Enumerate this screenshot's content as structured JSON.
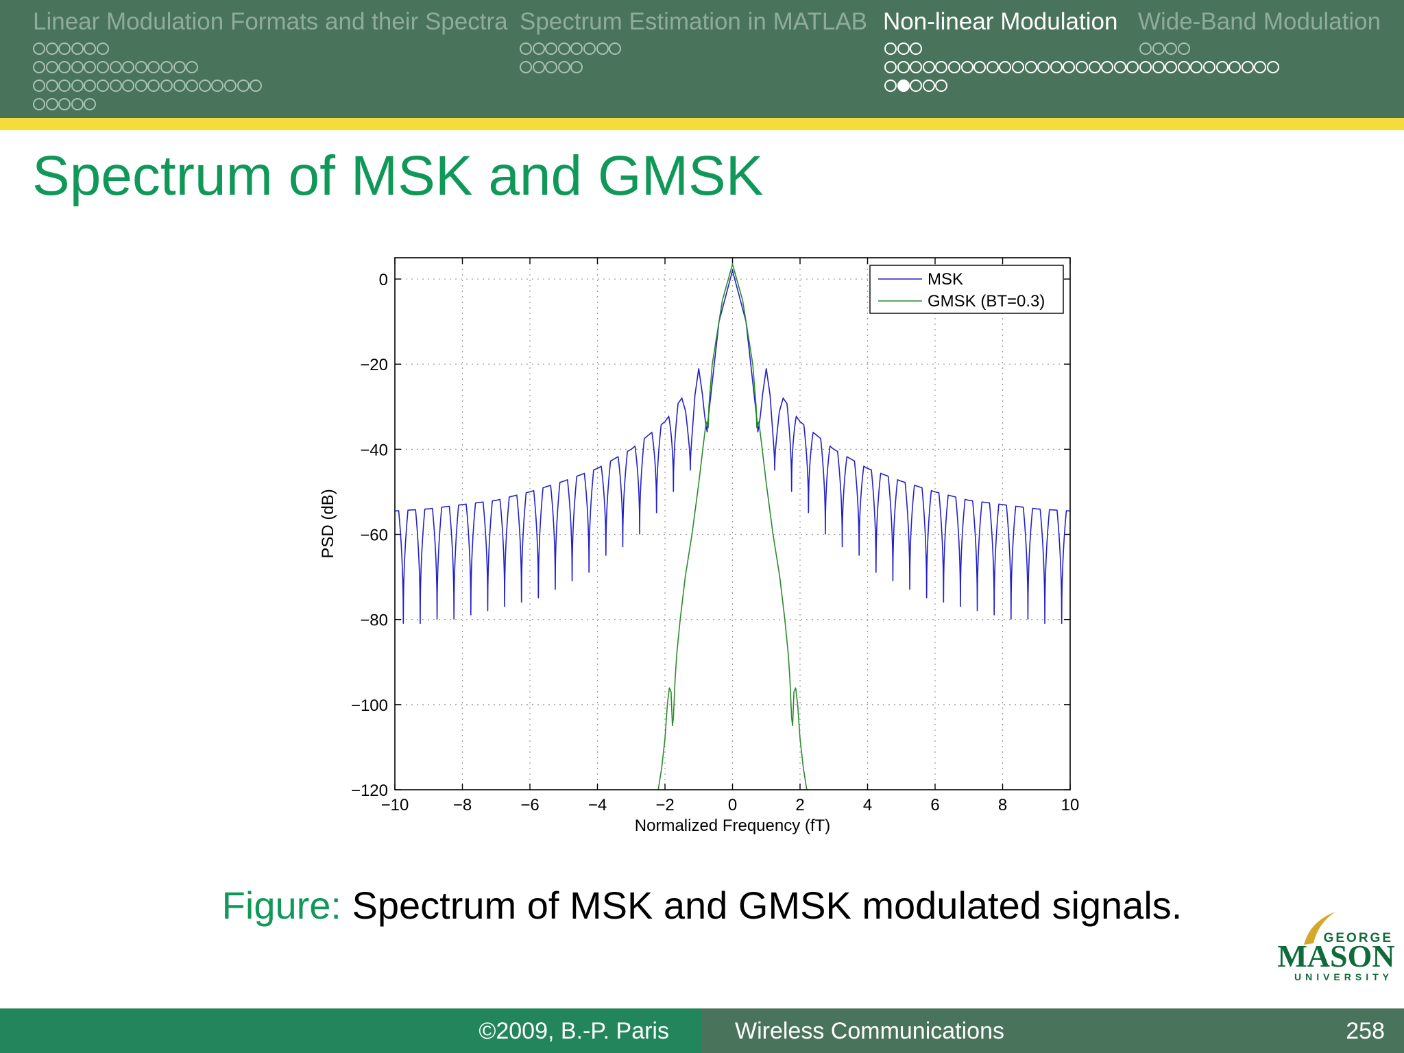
{
  "header": {
    "sections": [
      {
        "title": "Linear Modulation Formats and their Spectra",
        "active": false,
        "dot_rows": [
          [
            0,
            0,
            0,
            0,
            0,
            0
          ],
          [
            0,
            0,
            0,
            0,
            0,
            0,
            0,
            0,
            0,
            0,
            0,
            0,
            0
          ],
          [
            0,
            0,
            0,
            0,
            0,
            0,
            0,
            0,
            0,
            0,
            0,
            0,
            0,
            0,
            0,
            0,
            0,
            0
          ],
          [
            0,
            0,
            0,
            0,
            0
          ]
        ]
      },
      {
        "title": "Spectrum Estimation in MATLAB",
        "active": false,
        "dot_rows": [
          [
            0,
            0,
            0,
            0,
            0,
            0,
            0,
            0
          ],
          [
            0,
            0,
            0,
            0,
            0
          ]
        ]
      },
      {
        "title": "Non-linear Modulation",
        "active": true,
        "dot_rows": [
          [
            0,
            0,
            0
          ],
          [
            0,
            0,
            0,
            0,
            0,
            0,
            0,
            0,
            0,
            0,
            0,
            0,
            0,
            0,
            0,
            0,
            0,
            0,
            0,
            0,
            0,
            0,
            0,
            0,
            0,
            0,
            0,
            0,
            0,
            0,
            0
          ],
          [
            0,
            1,
            0,
            0,
            0
          ]
        ]
      },
      {
        "title": "Wide-Band Modulation",
        "active": false,
        "dot_rows": [
          [
            0,
            0,
            0,
            0
          ]
        ]
      }
    ]
  },
  "slide": {
    "title": "Spectrum of MSK and GMSK",
    "caption_label": "Figure:",
    "caption_text": "Spectrum of MSK and GMSK modulated signals."
  },
  "chart_data": {
    "type": "line",
    "title": "",
    "xlabel": "Normalized Frequency (fT)",
    "ylabel": "PSD (dB)",
    "xlim": [
      -10,
      10
    ],
    "ylim": [
      -120,
      5
    ],
    "xticks": [
      -10,
      -8,
      -6,
      -4,
      -2,
      0,
      2,
      4,
      6,
      8,
      10
    ],
    "yticks": [
      0,
      -20,
      -40,
      -60,
      -80,
      -100,
      -120
    ],
    "grid": true,
    "legend_position": "top-right",
    "series": [
      {
        "name": "MSK",
        "color": "#2020c8",
        "points": [
          [
            0,
            2
          ],
          [
            0.4,
            -10
          ],
          [
            0.75,
            -35
          ],
          [
            1.0,
            -21
          ],
          [
            1.25,
            -35
          ],
          [
            1.5,
            -28
          ],
          [
            2,
            -33.5
          ],
          [
            3,
            -40
          ],
          [
            4,
            -44.5
          ],
          [
            5,
            -47.5
          ],
          [
            6,
            -50
          ],
          [
            7,
            -52
          ],
          [
            8,
            -53
          ],
          [
            9,
            -54
          ],
          [
            10,
            -54.5
          ]
        ],
        "nulls": [
          [
            0.75,
            -36
          ],
          [
            1.25,
            -45
          ],
          [
            1.75,
            -50
          ],
          [
            2.25,
            -55
          ],
          [
            2.75,
            -60
          ],
          [
            3.25,
            -63
          ],
          [
            3.75,
            -65
          ],
          [
            4.25,
            -69
          ],
          [
            4.75,
            -71
          ],
          [
            5.25,
            -73
          ],
          [
            5.75,
            -75
          ],
          [
            6.25,
            -76
          ],
          [
            6.75,
            -77
          ],
          [
            7.25,
            -78
          ],
          [
            7.75,
            -79
          ],
          [
            8.25,
            -80
          ],
          [
            8.75,
            -80
          ],
          [
            9.25,
            -81
          ],
          [
            9.75,
            -81
          ]
        ]
      },
      {
        "name": "GMSK (BT=0.3)",
        "color": "#2a8a2a",
        "points": [
          [
            0,
            3.5
          ],
          [
            0.3,
            -5
          ],
          [
            0.6,
            -20
          ],
          [
            0.7,
            -30
          ],
          [
            0.72,
            -35
          ],
          [
            0.78,
            -33.5
          ],
          [
            0.85,
            -38
          ],
          [
            1.0,
            -48
          ],
          [
            1.2,
            -60
          ],
          [
            1.4,
            -70
          ],
          [
            1.55,
            -80
          ],
          [
            1.65,
            -88
          ],
          [
            1.7,
            -94
          ],
          [
            1.75,
            -103
          ],
          [
            1.78,
            -105
          ],
          [
            1.82,
            -97
          ],
          [
            1.87,
            -96
          ],
          [
            1.93,
            -100
          ],
          [
            2.0,
            -108
          ],
          [
            2.1,
            -115
          ],
          [
            2.22,
            -121
          ]
        ]
      }
    ]
  },
  "footer": {
    "copyright": "©2009, B.-P. Paris",
    "course": "Wireless Communications",
    "page": "258"
  },
  "logo": {
    "line1": "GEORGE",
    "line2": "MASON",
    "line3": "UNIVERSITY",
    "colors": {
      "green": "#0f6b3a",
      "gold": "#d4a82a"
    }
  }
}
